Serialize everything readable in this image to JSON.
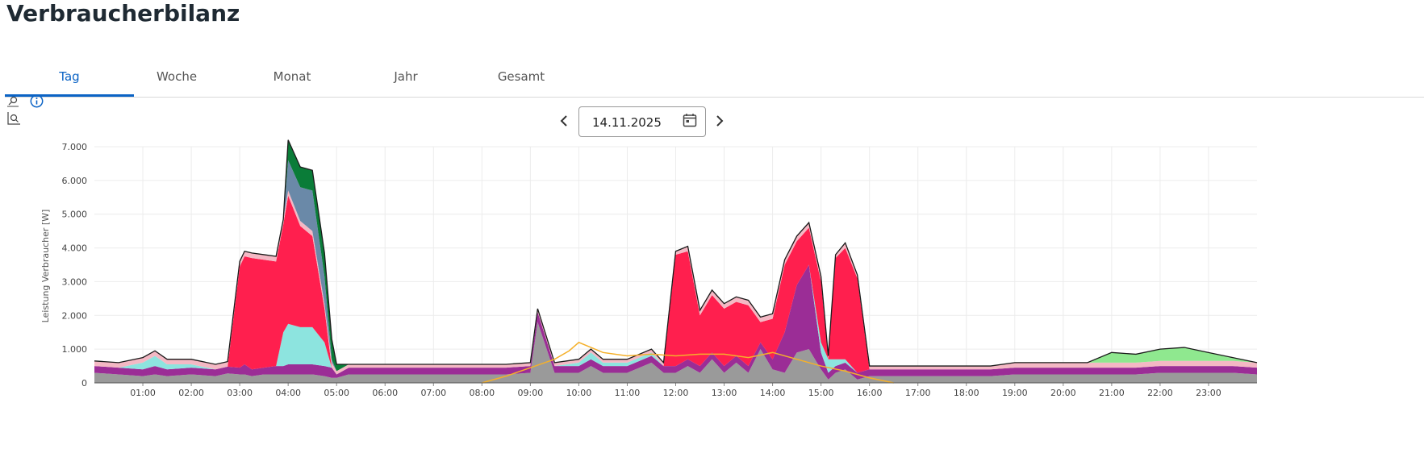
{
  "header": {
    "title": "Verbraucherbilanz"
  },
  "tabs": [
    {
      "label": "Tag",
      "active": true
    },
    {
      "label": "Woche",
      "active": false
    },
    {
      "label": "Monat",
      "active": false
    },
    {
      "label": "Jahr",
      "active": false
    },
    {
      "label": "Gesamt",
      "active": false
    }
  ],
  "tools": {
    "zoom": "zoom-icon",
    "zoom_reset": "zoom-area-icon",
    "info": "info-icon"
  },
  "date": {
    "value": "14.11.2025",
    "calendar_icon": "calendar-icon"
  },
  "colors": {
    "accent": "#0b63c5",
    "grey": "#9a9a9a",
    "purple": "#9b2d96",
    "pink": "#f4b8c4",
    "red": "#ff1f4e",
    "cyan": "#8de4df",
    "green": "#0a7c38",
    "steelblue": "#6a89a8",
    "lightgreen": "#8fe88f",
    "blue": "#0a64b4",
    "limegreen": "#2dbb2d",
    "orange": "#f5b02a",
    "outline": "#1a1a1a"
  },
  "chart_data": {
    "type": "area",
    "ylabel": "Leistung Verbraucher [W]",
    "ylim": [
      0,
      7000
    ],
    "yticks": [
      0,
      1000,
      2000,
      3000,
      4000,
      5000,
      6000,
      7000
    ],
    "ytick_labels": [
      "0",
      "1.000",
      "2.000",
      "3.000",
      "4.000",
      "5.000",
      "6.000",
      "7.000"
    ],
    "xlim": [
      0,
      24
    ],
    "xticks": [
      1,
      2,
      3,
      4,
      5,
      6,
      7,
      8,
      9,
      10,
      11,
      12,
      13,
      14,
      15,
      16,
      17,
      18,
      19,
      20,
      21,
      22,
      23
    ],
    "xtick_labels": [
      "01:00",
      "02:00",
      "03:00",
      "04:00",
      "05:00",
      "06:00",
      "07:00",
      "08:00",
      "09:00",
      "10:00",
      "11:00",
      "12:00",
      "13:00",
      "14:00",
      "15:00",
      "16:00",
      "17:00",
      "18:00",
      "19:00",
      "20:00",
      "21:00",
      "22:00",
      "23:00"
    ],
    "grid": true,
    "x": [
      0,
      0.5,
      1,
      1.25,
      1.5,
      2,
      2.5,
      2.75,
      3,
      3.1,
      3.25,
      3.5,
      3.75,
      3.9,
      4,
      4.25,
      4.5,
      4.75,
      4.9,
      5,
      5.25,
      5.5,
      6,
      6.5,
      7,
      7.5,
      8,
      8.5,
      9,
      9.15,
      9.5,
      10,
      10.25,
      10.5,
      11,
      11.5,
      11.75,
      12,
      12.25,
      12.5,
      12.75,
      13,
      13.25,
      13.5,
      13.75,
      14,
      14.25,
      14.5,
      14.75,
      15,
      15.15,
      15.3,
      15.5,
      15.75,
      16,
      16.5,
      17,
      17.5,
      18,
      18.5,
      19,
      19.5,
      20,
      20.5,
      21,
      21.5,
      22,
      22.5,
      23,
      23.5,
      24
    ],
    "series": [
      {
        "key": "grey",
        "color": "#9a9a9a",
        "values": [
          300,
          250,
          200,
          250,
          200,
          250,
          200,
          280,
          250,
          250,
          200,
          250,
          250,
          250,
          250,
          250,
          250,
          200,
          150,
          150,
          250,
          250,
          250,
          250,
          250,
          250,
          250,
          250,
          300,
          1800,
          300,
          300,
          500,
          300,
          300,
          600,
          300,
          300,
          500,
          300,
          700,
          300,
          600,
          300,
          1000,
          400,
          300,
          900,
          1000,
          400,
          100,
          300,
          400,
          100,
          200,
          200,
          200,
          200,
          200,
          200,
          250,
          250,
          250,
          250,
          250,
          250,
          300,
          300,
          300,
          300,
          250
        ]
      },
      {
        "key": "purple",
        "color": "#9b2d96",
        "values": [
          200,
          200,
          200,
          250,
          200,
          200,
          200,
          200,
          200,
          300,
          200,
          200,
          250,
          250,
          300,
          300,
          300,
          300,
          300,
          100,
          200,
          200,
          200,
          200,
          200,
          200,
          200,
          200,
          200,
          300,
          200,
          200,
          200,
          200,
          200,
          200,
          200,
          200,
          200,
          200,
          200,
          200,
          200,
          200,
          200,
          300,
          1200,
          2000,
          2500,
          500,
          200,
          200,
          200,
          200,
          200,
          200,
          200,
          200,
          200,
          200,
          200,
          200,
          200,
          200,
          200,
          200,
          200,
          200,
          200,
          200,
          200
        ]
      },
      {
        "key": "cyan",
        "color": "#8de4df",
        "values": [
          0,
          0,
          200,
          300,
          150,
          100,
          0,
          0,
          0,
          0,
          0,
          0,
          0,
          1000,
          1200,
          1100,
          1100,
          700,
          0,
          0,
          0,
          0,
          0,
          0,
          0,
          0,
          0,
          0,
          0,
          0,
          0,
          100,
          200,
          100,
          100,
          100,
          0,
          0,
          0,
          0,
          0,
          0,
          0,
          0,
          0,
          0,
          0,
          0,
          0,
          300,
          400,
          200,
          100,
          0,
          0,
          0,
          0,
          0,
          0,
          0,
          0,
          0,
          0,
          0,
          0,
          0,
          0,
          0,
          0,
          0,
          0
        ]
      },
      {
        "key": "red",
        "color": "#ff1f4e",
        "values": [
          0,
          0,
          0,
          0,
          0,
          0,
          0,
          0,
          3000,
          3200,
          3300,
          3200,
          3100,
          3200,
          3800,
          3000,
          2700,
          1000,
          0,
          0,
          0,
          0,
          0,
          0,
          0,
          0,
          0,
          0,
          0,
          0,
          0,
          0,
          0,
          0,
          0,
          0,
          0,
          3300,
          3200,
          1500,
          1700,
          1700,
          1600,
          1800,
          600,
          1200,
          2000,
          1300,
          1100,
          1800,
          0,
          3000,
          3300,
          2800,
          0,
          0,
          0,
          0,
          0,
          0,
          0,
          0,
          0,
          0,
          0,
          0,
          0,
          0,
          0,
          0,
          0
        ]
      },
      {
        "key": "pink",
        "color": "#f4b8c4",
        "values": [
          150,
          150,
          150,
          150,
          150,
          150,
          150,
          150,
          150,
          150,
          150,
          150,
          150,
          150,
          150,
          150,
          150,
          150,
          150,
          100,
          100,
          100,
          100,
          100,
          100,
          100,
          100,
          100,
          100,
          100,
          100,
          100,
          100,
          100,
          100,
          100,
          100,
          100,
          150,
          150,
          150,
          150,
          150,
          150,
          150,
          150,
          150,
          150,
          150,
          150,
          100,
          100,
          150,
          100,
          100,
          100,
          100,
          100,
          100,
          100,
          150,
          150,
          150,
          150,
          150,
          150,
          150,
          150,
          150,
          150,
          150
        ]
      },
      {
        "key": "steelblue",
        "color": "#6a89a8",
        "values": [
          0,
          0,
          0,
          0,
          0,
          0,
          0,
          0,
          0,
          0,
          0,
          0,
          0,
          0,
          900,
          1000,
          1200,
          800,
          100,
          0,
          0,
          0,
          0,
          0,
          0,
          0,
          0,
          0,
          0,
          0,
          0,
          0,
          0,
          0,
          0,
          0,
          0,
          0,
          0,
          0,
          0,
          0,
          0,
          0,
          0,
          0,
          0,
          0,
          0,
          0,
          0,
          0,
          0,
          0,
          0,
          0,
          0,
          0,
          0,
          0,
          0,
          0,
          0,
          0,
          0,
          0,
          0,
          0,
          0,
          0,
          0
        ]
      },
      {
        "key": "green",
        "color": "#0a7c38",
        "values": [
          0,
          0,
          0,
          0,
          0,
          0,
          0,
          0,
          0,
          0,
          0,
          0,
          0,
          0,
          600,
          600,
          600,
          700,
          600,
          200,
          0,
          0,
          0,
          0,
          0,
          0,
          0,
          0,
          0,
          0,
          0,
          0,
          0,
          0,
          0,
          0,
          0,
          0,
          0,
          0,
          0,
          0,
          0,
          0,
          0,
          0,
          0,
          0,
          0,
          0,
          0,
          0,
          0,
          0,
          0,
          0,
          0,
          0,
          0,
          0,
          0,
          0,
          0,
          0,
          0,
          0,
          0,
          0,
          0,
          0,
          0
        ]
      },
      {
        "key": "lightgreen",
        "color": "#8fe88f",
        "values": [
          0,
          0,
          0,
          0,
          0,
          0,
          0,
          0,
          0,
          0,
          0,
          0,
          0,
          0,
          0,
          0,
          0,
          0,
          0,
          0,
          0,
          0,
          0,
          0,
          0,
          0,
          0,
          0,
          0,
          0,
          0,
          0,
          0,
          0,
          0,
          0,
          0,
          0,
          0,
          0,
          0,
          0,
          0,
          0,
          0,
          0,
          0,
          0,
          0,
          0,
          0,
          0,
          0,
          0,
          0,
          0,
          0,
          0,
          0,
          0,
          0,
          0,
          0,
          0,
          300,
          250,
          350,
          400,
          250,
          100,
          0
        ]
      }
    ],
    "overlay_lines": [
      {
        "key": "orange",
        "color": "#f5b02a",
        "x": [
          8,
          8.5,
          9,
          9.5,
          9.8,
          10,
          10.5,
          11,
          11.5,
          12,
          12.5,
          13,
          13.5,
          14,
          14.5,
          15,
          15.5,
          16,
          16.5
        ],
        "values": [
          0,
          200,
          450,
          700,
          950,
          1200,
          900,
          800,
          850,
          800,
          850,
          850,
          750,
          900,
          700,
          500,
          350,
          150,
          0
        ]
      }
    ]
  }
}
